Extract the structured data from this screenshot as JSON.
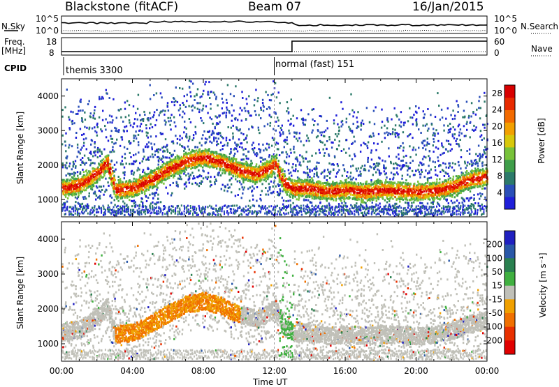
{
  "header": {
    "station": "Blackstone (fitACF)",
    "beam": "Beam 07",
    "date": "16/Jan/2015"
  },
  "top_panels": {
    "nsky_label": "N.Sky",
    "nsearch_label": "N.Search",
    "freq_label_1": "Freq.",
    "freq_label_2": "[MHz]",
    "nave_label": "Nave",
    "cpid_label": "CPID",
    "noise_ticks": [
      "10^5",
      "10^0"
    ],
    "freq_ticks": [
      "18",
      "8"
    ],
    "nave_ticks": [
      "60",
      "0"
    ],
    "cpid_segments": [
      {
        "start_hour": 0,
        "label": "themis 3300"
      },
      {
        "start_hour": 12,
        "label": "normal (fast) 151"
      }
    ]
  },
  "colors": {
    "power_scale": [
      "#1f1fd9",
      "#2a4fb8",
      "#2c7a6a",
      "#3f9e4a",
      "#78c23a",
      "#d8c80a",
      "#f2a000",
      "#f26a00",
      "#e82a00",
      "#d80000"
    ],
    "velocity_scale": [
      "#2020c0",
      "#2a58a8",
      "#2a8050",
      "#40b040",
      "#c0c0b8",
      "#f0a000",
      "#f07000",
      "#e83000",
      "#e00000"
    ]
  },
  "chart_data": [
    {
      "type": "heatmap",
      "name": "power",
      "ylabel": "Slant Range [km]",
      "yticks": [
        "1000",
        "2000",
        "3000",
        "4000"
      ],
      "ylim": [
        500,
        4500
      ],
      "colorbar_label": "Power [dB]",
      "colorbar_ticks": [
        "4",
        "8",
        "12",
        "16",
        "20",
        "24",
        "28"
      ],
      "colorbar_range": [
        0,
        30
      ],
      "band_center_km": [
        [
          0,
          1350
        ],
        [
          1,
          1450
        ],
        [
          2,
          1800
        ],
        [
          2.5,
          2100
        ],
        [
          3,
          1300
        ],
        [
          4,
          1350
        ],
        [
          5,
          1600
        ],
        [
          6,
          1900
        ],
        [
          7,
          2150
        ],
        [
          8,
          2250
        ],
        [
          9,
          2100
        ],
        [
          10,
          1850
        ],
        [
          11,
          1750
        ],
        [
          12,
          2050
        ],
        [
          12.5,
          1500
        ],
        [
          13,
          1350
        ],
        [
          14,
          1350
        ],
        [
          15,
          1250
        ],
        [
          16,
          1300
        ],
        [
          17,
          1250
        ],
        [
          18,
          1300
        ],
        [
          19,
          1280
        ],
        [
          20,
          1250
        ],
        [
          21,
          1280
        ],
        [
          22,
          1400
        ],
        [
          23,
          1600
        ],
        [
          24,
          1700
        ]
      ]
    },
    {
      "type": "heatmap",
      "name": "velocity",
      "ylabel": "Slant Range [km]",
      "yticks": [
        "1000",
        "2000",
        "3000",
        "4000"
      ],
      "ylim": [
        500,
        4500
      ],
      "colorbar_label": "Velocity [m s⁻¹]",
      "colorbar_ticks": [
        "200",
        "100",
        "50",
        "15",
        "-15",
        "-50",
        "-100",
        "-200"
      ],
      "colorbar_range": [
        -250,
        250
      ]
    }
  ],
  "xaxis": {
    "xlabel": "Time UT",
    "xticks": [
      "00:00",
      "04:00",
      "08:00",
      "12:00",
      "16:00",
      "20:00",
      "00:00"
    ],
    "xlim": [
      0,
      24
    ]
  }
}
